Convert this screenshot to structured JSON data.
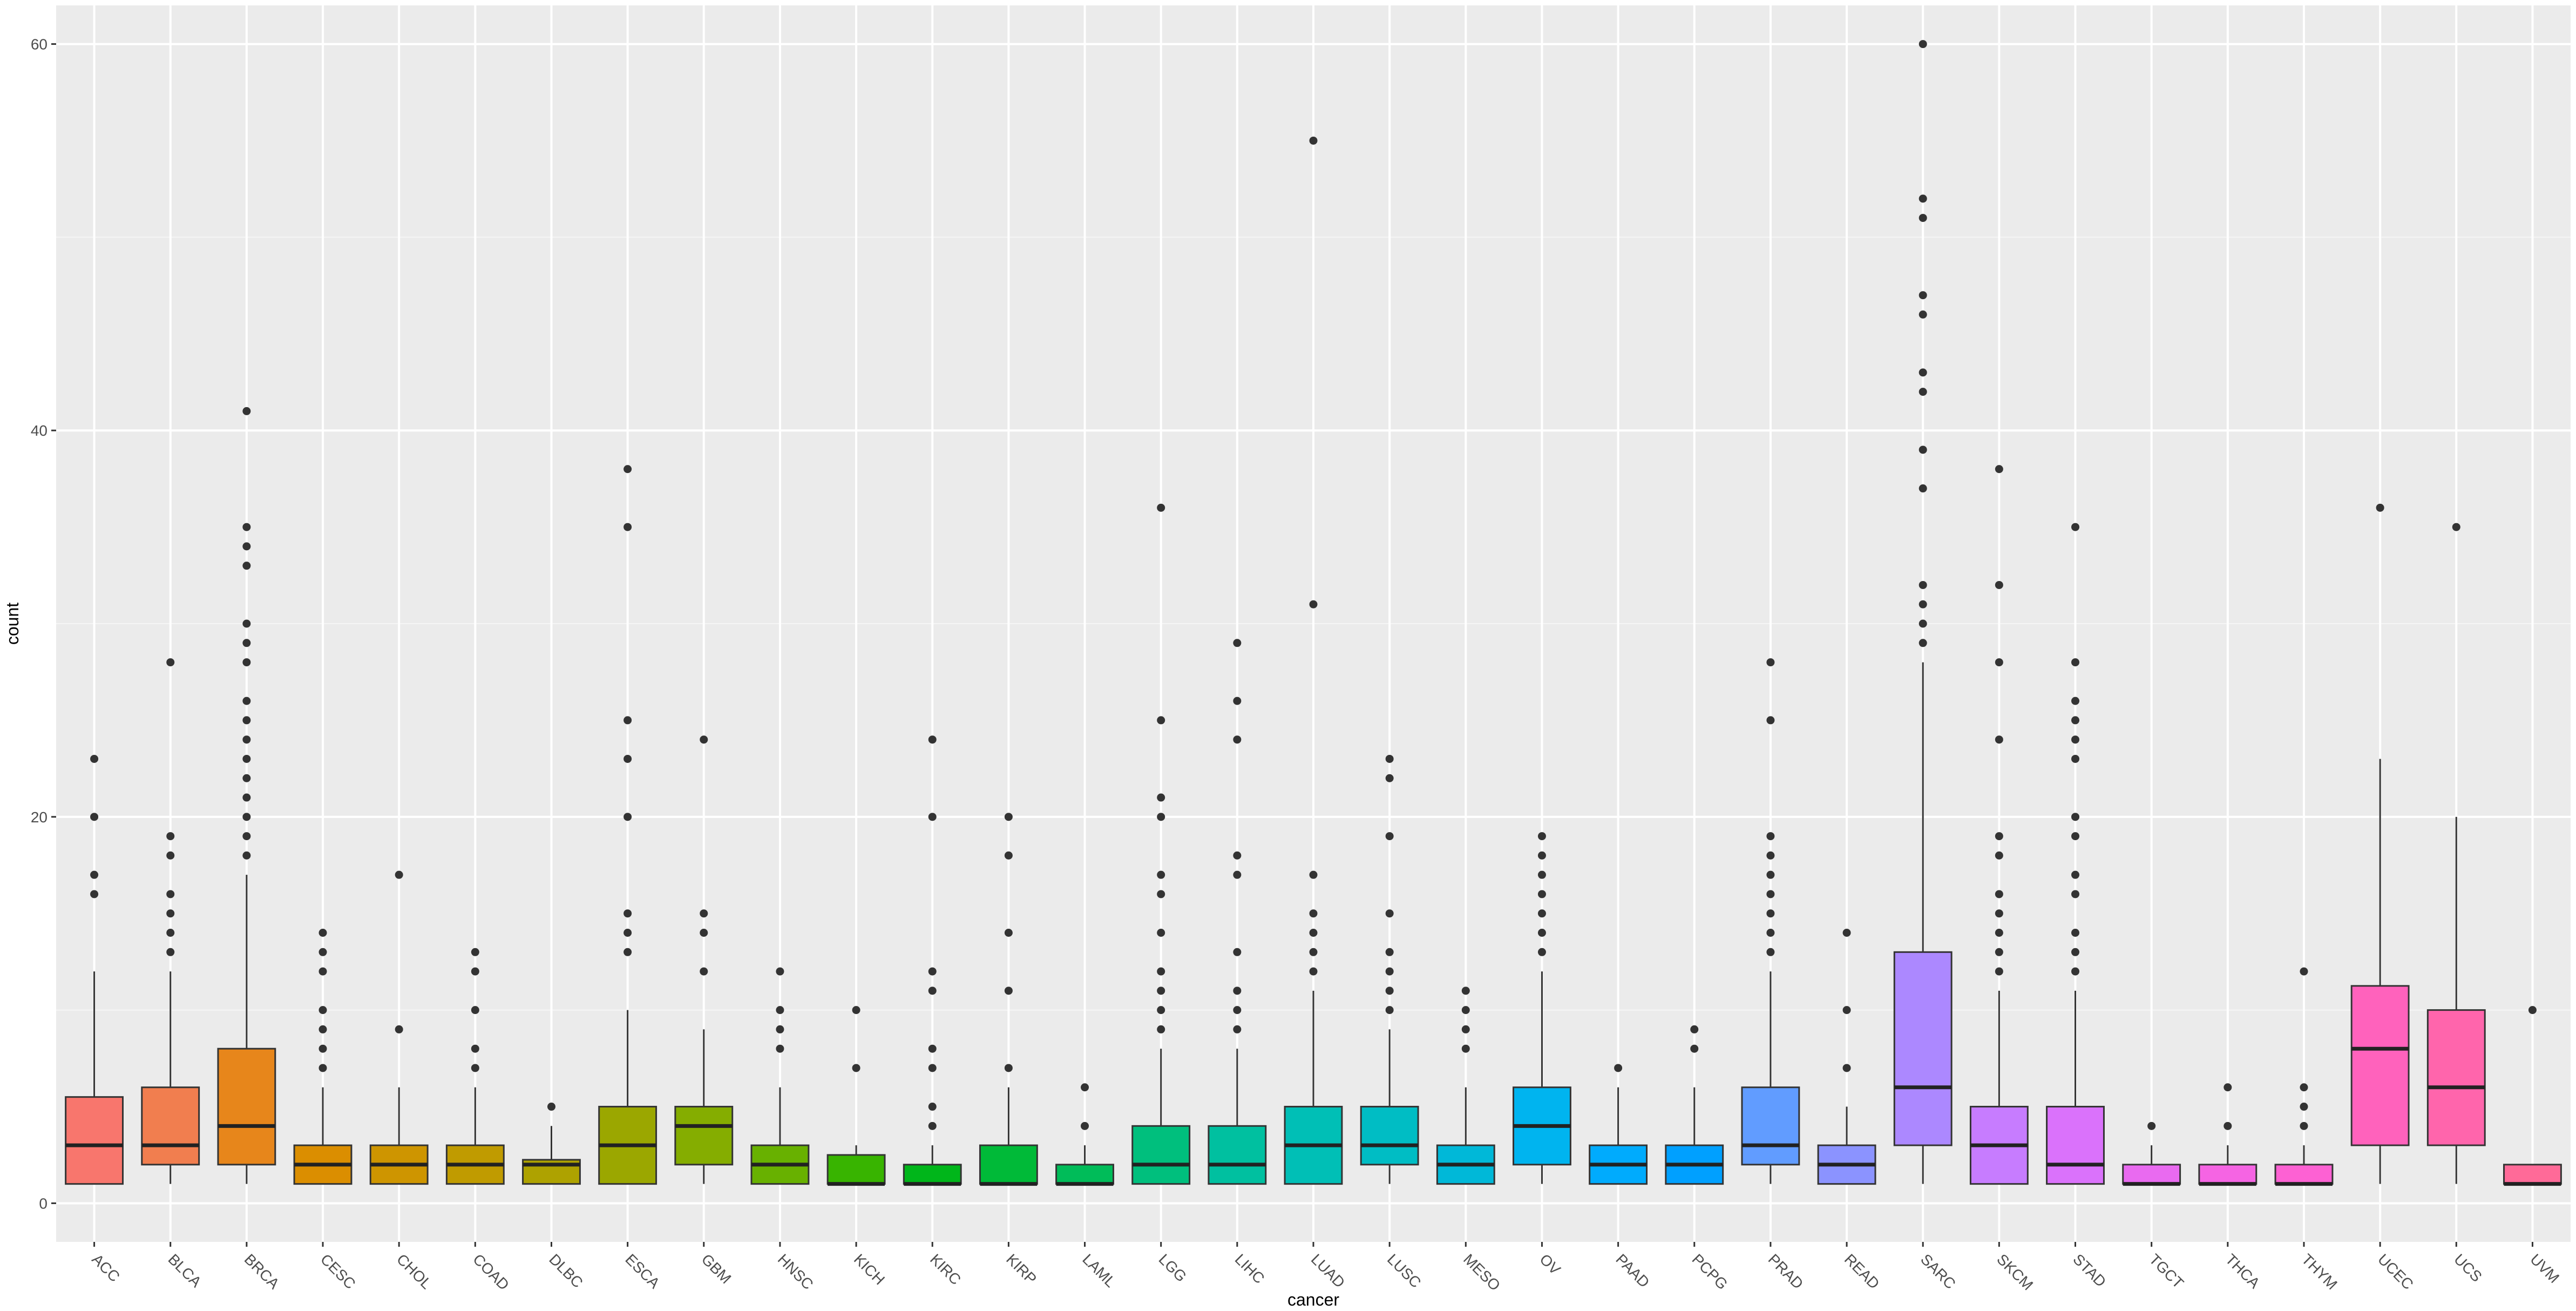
{
  "chart_data": {
    "type": "boxplot",
    "xlabel": "cancer",
    "ylabel": "count",
    "ylim": [
      -2,
      62
    ],
    "yticks": [
      0,
      20,
      40,
      60
    ],
    "grid": true,
    "legend": "none",
    "boxes": [
      {
        "category": "ACC",
        "color": "#F8766D",
        "q1": 1,
        "median": 3,
        "q3": 5.5,
        "whisker_low": 1,
        "whisker_high": 12,
        "outliers": [
          16,
          17,
          20,
          23
        ]
      },
      {
        "category": "BLCA",
        "color": "#F17E4F",
        "q1": 2,
        "median": 3,
        "q3": 6,
        "whisker_low": 1,
        "whisker_high": 12,
        "outliers": [
          13,
          14,
          15,
          16,
          18,
          19,
          28
        ]
      },
      {
        "category": "BRCA",
        "color": "#E7861B",
        "q1": 2,
        "median": 4,
        "q3": 8,
        "whisker_low": 1,
        "whisker_high": 17,
        "outliers": [
          18,
          19,
          20,
          21,
          22,
          23,
          24,
          25,
          26,
          28,
          29,
          30,
          33,
          34,
          35,
          41
        ]
      },
      {
        "category": "CESC",
        "color": "#DB8E00",
        "q1": 1,
        "median": 2,
        "q3": 3,
        "whisker_low": 1,
        "whisker_high": 6,
        "outliers": [
          7,
          8,
          9,
          10,
          12,
          13,
          14
        ]
      },
      {
        "category": "CHOL",
        "color": "#CE9500",
        "q1": 1,
        "median": 2,
        "q3": 3,
        "whisker_low": 1,
        "whisker_high": 6,
        "outliers": [
          9,
          17
        ]
      },
      {
        "category": "COAD",
        "color": "#C09B00",
        "q1": 1,
        "median": 2,
        "q3": 3,
        "whisker_low": 1,
        "whisker_high": 6,
        "outliers": [
          7,
          8,
          10,
          12,
          13
        ]
      },
      {
        "category": "DLBC",
        "color": "#AEA200",
        "q1": 1,
        "median": 2,
        "q3": 2.25,
        "whisker_low": 1,
        "whisker_high": 4,
        "outliers": [
          5
        ]
      },
      {
        "category": "ESCA",
        "color": "#9BA700",
        "q1": 1,
        "median": 3,
        "q3": 5,
        "whisker_low": 1,
        "whisker_high": 10,
        "outliers": [
          13,
          14,
          15,
          20,
          23,
          25,
          35,
          38
        ]
      },
      {
        "category": "GBM",
        "color": "#85AD00",
        "q1": 2,
        "median": 4,
        "q3": 5,
        "whisker_low": 1,
        "whisker_high": 9,
        "outliers": [
          12,
          14,
          15,
          24
        ]
      },
      {
        "category": "HNSC",
        "color": "#68B100",
        "q1": 1,
        "median": 2,
        "q3": 3,
        "whisker_low": 1,
        "whisker_high": 6,
        "outliers": [
          8,
          9,
          10,
          12
        ]
      },
      {
        "category": "KICH",
        "color": "#38B400",
        "q1": 1,
        "median": 1,
        "q3": 2.5,
        "whisker_low": 1,
        "whisker_high": 3,
        "outliers": [
          7,
          10
        ]
      },
      {
        "category": "KIRC",
        "color": "#00B61A",
        "q1": 1,
        "median": 1,
        "q3": 2,
        "whisker_low": 1,
        "whisker_high": 3,
        "outliers": [
          4,
          5,
          7,
          8,
          11,
          12,
          20,
          24
        ]
      },
      {
        "category": "KIRP",
        "color": "#00BA38",
        "q1": 1,
        "median": 1,
        "q3": 3,
        "whisker_low": 1,
        "whisker_high": 6,
        "outliers": [
          7,
          11,
          14,
          18,
          20
        ]
      },
      {
        "category": "LAML",
        "color": "#00BC59",
        "q1": 1,
        "median": 1,
        "q3": 2,
        "whisker_low": 1,
        "whisker_high": 3,
        "outliers": [
          4,
          6
        ]
      },
      {
        "category": "LGG",
        "color": "#00BF7D",
        "q1": 1,
        "median": 2,
        "q3": 4,
        "whisker_low": 1,
        "whisker_high": 8,
        "outliers": [
          9,
          10,
          11,
          12,
          14,
          16,
          17,
          20,
          21,
          25,
          36
        ]
      },
      {
        "category": "LIHC",
        "color": "#00C0A0",
        "q1": 1,
        "median": 2,
        "q3": 4,
        "whisker_low": 1,
        "whisker_high": 8,
        "outliers": [
          9,
          10,
          11,
          13,
          17,
          18,
          24,
          26,
          29
        ]
      },
      {
        "category": "LUAD",
        "color": "#00BFB6",
        "q1": 1,
        "median": 3,
        "q3": 5,
        "whisker_low": 1,
        "whisker_high": 11,
        "outliers": [
          12,
          13,
          14,
          15,
          17,
          31,
          55
        ]
      },
      {
        "category": "LUSC",
        "color": "#00BDC4",
        "q1": 2,
        "median": 3,
        "q3": 5,
        "whisker_low": 1,
        "whisker_high": 9,
        "outliers": [
          10,
          11,
          12,
          13,
          15,
          19,
          22,
          23
        ]
      },
      {
        "category": "MESO",
        "color": "#00B8D8",
        "q1": 1,
        "median": 2,
        "q3": 3,
        "whisker_low": 1,
        "whisker_high": 6,
        "outliers": [
          8,
          9,
          10,
          11
        ]
      },
      {
        "category": "OV",
        "color": "#00B4EF",
        "q1": 2,
        "median": 4,
        "q3": 6,
        "whisker_low": 1,
        "whisker_high": 12,
        "outliers": [
          13,
          14,
          15,
          16,
          17,
          18,
          19
        ]
      },
      {
        "category": "PAAD",
        "color": "#00ABFD",
        "q1": 1,
        "median": 2,
        "q3": 3,
        "whisker_low": 1,
        "whisker_high": 6,
        "outliers": [
          7
        ]
      },
      {
        "category": "PCPG",
        "color": "#00A0FF",
        "q1": 1,
        "median": 2,
        "q3": 3,
        "whisker_low": 1,
        "whisker_high": 6,
        "outliers": [
          8,
          9
        ]
      },
      {
        "category": "PRAD",
        "color": "#619CFF",
        "q1": 2,
        "median": 3,
        "q3": 6,
        "whisker_low": 1,
        "whisker_high": 12,
        "outliers": [
          13,
          14,
          15,
          16,
          17,
          18,
          19,
          25,
          28
        ]
      },
      {
        "category": "READ",
        "color": "#8B93FF",
        "q1": 1,
        "median": 2,
        "q3": 3,
        "whisker_low": 1,
        "whisker_high": 5,
        "outliers": [
          7,
          10,
          14
        ]
      },
      {
        "category": "SARC",
        "color": "#AC88FF",
        "q1": 3,
        "median": 6,
        "q3": 13,
        "whisker_low": 1,
        "whisker_high": 28,
        "outliers": [
          29,
          30,
          31,
          32,
          37,
          39,
          42,
          43,
          46,
          47,
          51,
          52,
          60
        ]
      },
      {
        "category": "SKCM",
        "color": "#C77CFF",
        "q1": 1,
        "median": 3,
        "q3": 5,
        "whisker_low": 1,
        "whisker_high": 11,
        "outliers": [
          12,
          13,
          14,
          15,
          16,
          18,
          19,
          24,
          28,
          32,
          38
        ]
      },
      {
        "category": "STAD",
        "color": "#DA72FB",
        "q1": 1,
        "median": 2,
        "q3": 5,
        "whisker_low": 1,
        "whisker_high": 11,
        "outliers": [
          12,
          13,
          14,
          16,
          17,
          19,
          20,
          23,
          24,
          25,
          26,
          28,
          35
        ]
      },
      {
        "category": "TGCT",
        "color": "#E96AF0",
        "q1": 1,
        "median": 1,
        "q3": 2,
        "whisker_low": 1,
        "whisker_high": 3,
        "outliers": [
          4
        ]
      },
      {
        "category": "THCA",
        "color": "#F564E3",
        "q1": 1,
        "median": 1,
        "q3": 2,
        "whisker_low": 1,
        "whisker_high": 3,
        "outliers": [
          4,
          6
        ]
      },
      {
        "category": "THYM",
        "color": "#FD61D3",
        "q1": 1,
        "median": 1,
        "q3": 2,
        "whisker_low": 1,
        "whisker_high": 3,
        "outliers": [
          4,
          5,
          6,
          12
        ]
      },
      {
        "category": "UCEC",
        "color": "#FF62BC",
        "q1": 3,
        "median": 8,
        "q3": 11.25,
        "whisker_low": 1,
        "whisker_high": 23,
        "outliers": [
          36
        ]
      },
      {
        "category": "UCS",
        "color": "#FF65AC",
        "q1": 3,
        "median": 6,
        "q3": 10,
        "whisker_low": 1,
        "whisker_high": 20,
        "outliers": [
          35
        ]
      },
      {
        "category": "UVM",
        "color": "#FF6A98",
        "q1": 1,
        "median": 1,
        "q3": 2,
        "whisker_low": 1,
        "whisker_high": 2,
        "outliers": [
          10
        ]
      }
    ]
  }
}
